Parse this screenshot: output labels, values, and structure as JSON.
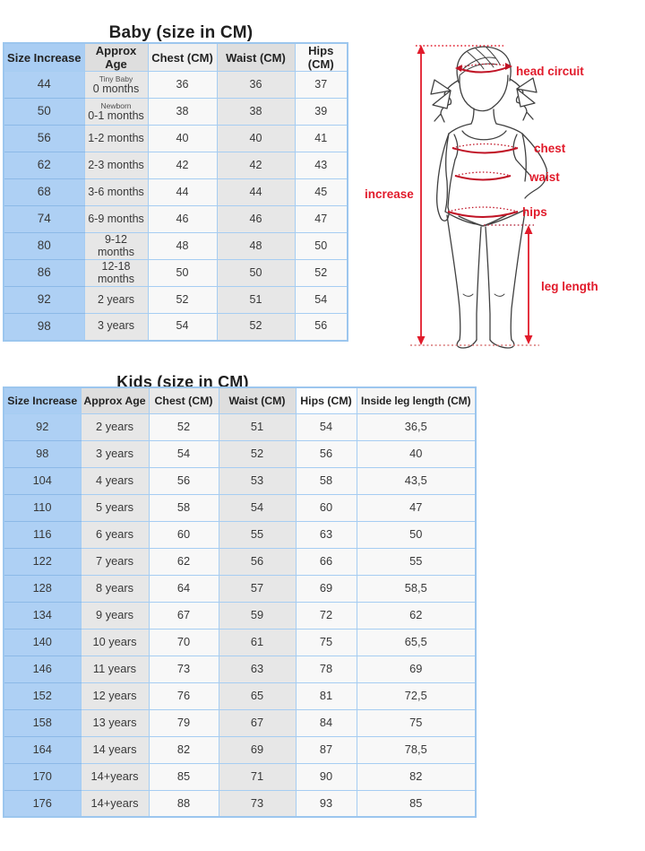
{
  "colors": {
    "accent_blue": "#aed0f4",
    "border_blue": "#a6cdf2",
    "cell_gray": "#e7e7e7",
    "cell_light": "#f8f8f8",
    "annotation_red": "#e11b2b",
    "figure_line": "#404040",
    "text_dark": "#1f1f1f"
  },
  "baby_table": {
    "title": "Baby (size in CM)",
    "headers": [
      "Size Increase",
      "Approx Age",
      "Chest (CM)",
      "Waist (CM)",
      "Hips (CM)"
    ],
    "rows": [
      {
        "size": "44",
        "age_note": "Tiny Baby",
        "age": "0 months",
        "chest": "36",
        "waist": "36",
        "hips": "37"
      },
      {
        "size": "50",
        "age_note": "Newborn",
        "age": "0-1 months",
        "chest": "38",
        "waist": "38",
        "hips": "39"
      },
      {
        "size": "56",
        "age": "1-2 months",
        "chest": "40",
        "waist": "40",
        "hips": "41"
      },
      {
        "size": "62",
        "age": "2-3 months",
        "chest": "42",
        "waist": "42",
        "hips": "43"
      },
      {
        "size": "68",
        "age": "3-6 months",
        "chest": "44",
        "waist": "44",
        "hips": "45"
      },
      {
        "size": "74",
        "age": "6-9 months",
        "chest": "46",
        "waist": "46",
        "hips": "47"
      },
      {
        "size": "80",
        "age": "9-12 months",
        "chest": "48",
        "waist": "48",
        "hips": "50"
      },
      {
        "size": "86",
        "age": "12-18 months",
        "chest": "50",
        "waist": "50",
        "hips": "52"
      },
      {
        "size": "92",
        "age": "2 years",
        "chest": "52",
        "waist": "51",
        "hips": "54"
      },
      {
        "size": "98",
        "age": "3 years",
        "chest": "54",
        "waist": "52",
        "hips": "56"
      }
    ]
  },
  "kids_table": {
    "title": "Kids (size in CM)",
    "headers": [
      "Size Increase",
      "Approx Age",
      "Chest (CM)",
      "Waist (CM)",
      "Hips (CM)",
      "Inside leg length (CM)"
    ],
    "rows": [
      {
        "size": "92",
        "age": "2 years",
        "chest": "52",
        "waist": "51",
        "hips": "54",
        "leg": "36,5"
      },
      {
        "size": "98",
        "age": "3 years",
        "chest": "54",
        "waist": "52",
        "hips": "56",
        "leg": "40"
      },
      {
        "size": "104",
        "age": "4 years",
        "chest": "56",
        "waist": "53",
        "hips": "58",
        "leg": "43,5"
      },
      {
        "size": "110",
        "age": "5 years",
        "chest": "58",
        "waist": "54",
        "hips": "60",
        "leg": "47"
      },
      {
        "size": "116",
        "age": "6 years",
        "chest": "60",
        "waist": "55",
        "hips": "63",
        "leg": "50"
      },
      {
        "size": "122",
        "age": "7 years",
        "chest": "62",
        "waist": "56",
        "hips": "66",
        "leg": "55"
      },
      {
        "size": "128",
        "age": "8 years",
        "chest": "64",
        "waist": "57",
        "hips": "69",
        "leg": "58,5"
      },
      {
        "size": "134",
        "age": "9 years",
        "chest": "67",
        "waist": "59",
        "hips": "72",
        "leg": "62"
      },
      {
        "size": "140",
        "age": "10 years",
        "chest": "70",
        "waist": "61",
        "hips": "75",
        "leg": "65,5"
      },
      {
        "size": "146",
        "age": "11 years",
        "chest": "73",
        "waist": "63",
        "hips": "78",
        "leg": "69"
      },
      {
        "size": "152",
        "age": "12 years",
        "chest": "76",
        "waist": "65",
        "hips": "81",
        "leg": "72,5"
      },
      {
        "size": "158",
        "age": "13 years",
        "chest": "79",
        "waist": "67",
        "hips": "84",
        "leg": "75"
      },
      {
        "size": "164",
        "age": "14 years",
        "chest": "82",
        "waist": "69",
        "hips": "87",
        "leg": "78,5"
      },
      {
        "size": "170",
        "age": "14+years",
        "chest": "85",
        "waist": "71",
        "hips": "90",
        "leg": "82"
      },
      {
        "size": "176",
        "age": "14+years",
        "chest": "88",
        "waist": "73",
        "hips": "93",
        "leg": "85"
      }
    ]
  },
  "diagram": {
    "labels": {
      "head": "head circuit",
      "chest": "chest",
      "waist": "waist",
      "hips": "hips",
      "increase": "increase",
      "leg_length": "leg length"
    }
  }
}
